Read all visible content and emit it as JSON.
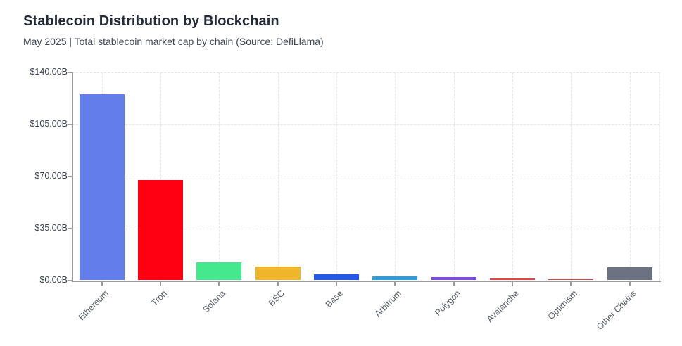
{
  "header": {
    "title": "Stablecoin Distribution by Blockchain",
    "subtitle": "May 2025 | Total stablecoin market cap by chain (Source: DefiLlama)"
  },
  "chart_data": {
    "type": "bar",
    "title": "Stablecoin Distribution by Blockchain",
    "subtitle": "May 2025 | Total stablecoin market cap by chain (Source: DefiLlama)",
    "categories": [
      "Ethereum",
      "Tron",
      "Solana",
      "BSC",
      "Base",
      "Arbitrum",
      "Polygon",
      "Avalanche",
      "Optimism",
      "Other Chains"
    ],
    "values": [
      125.3,
      67.5,
      11.9,
      9.2,
      3.8,
      2.7,
      1.9,
      1.4,
      0.8,
      8.7
    ],
    "unit": "billions USD",
    "bar_colors": [
      "#627EEA",
      "#FF0013",
      "#45E88D",
      "#EFB62B",
      "#2458E6",
      "#2D9DE0",
      "#7C4BE0",
      "#E24444",
      "#E04040",
      "#6B7383"
    ],
    "xlabel": "",
    "ylabel": "",
    "ylim": [
      0,
      140
    ],
    "y_tick_values": [
      0,
      35,
      70,
      105,
      140
    ],
    "y_tick_labels": [
      "$0.00B",
      "$35.00B",
      "$70.00B",
      "$105.00B",
      "$140.00B"
    ],
    "grid": true,
    "gridline_style": "dashed",
    "legend": "none"
  },
  "colors": {
    "title_text": "#222b3a",
    "subtitle_text": "#414855",
    "axis": "#9b9b9b",
    "gridline": "#e2e2e2",
    "y_tick_text": "#3c4353",
    "x_tick_text": "#565d69",
    "background": "#ffffff"
  }
}
